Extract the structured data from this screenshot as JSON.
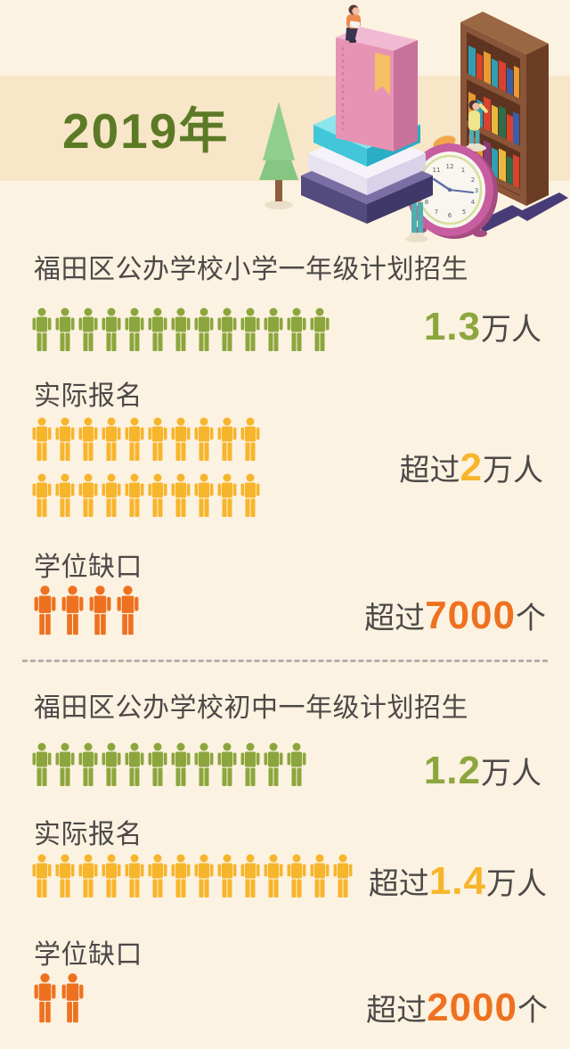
{
  "page": {
    "bg": "#FCF2E1"
  },
  "colors": {
    "green": "#8CA63D",
    "yellow": "#F7B52C",
    "orange": "#EE7120",
    "text": "#4C4948",
    "band": "#F8E6C8",
    "year": "#5C7A26",
    "divider": "#B4B0AC"
  },
  "header": {
    "year": "2019年",
    "illustration_icons": [
      "tree-icon",
      "book-stack-icon",
      "pink-book-icon",
      "bookmark-icon",
      "reading-person-icon",
      "bookshelf-icon",
      "shelf-books-icon",
      "browsing-person-icon",
      "alarm-clock-icon",
      "standing-person-icon"
    ]
  },
  "sections": [
    {
      "label": "福田区公办学校小学一年级计划招生",
      "icons": 13,
      "prefix": "",
      "number": "1.3",
      "suffix": "万人"
    },
    {
      "label": "实际报名",
      "icons": 20,
      "prefix": "超过",
      "number": "2",
      "suffix": "万人"
    },
    {
      "label": "学位缺口",
      "icons": 4,
      "prefix": "超过",
      "number": "7000",
      "suffix": "个"
    },
    {
      "label": "福田区公办学校初中一年级计划招生",
      "icons": 12,
      "prefix": "",
      "number": "1.2",
      "suffix": "万人"
    },
    {
      "label": "实际报名",
      "icons": 14,
      "prefix": "超过",
      "number": "1.4",
      "suffix": "万人"
    },
    {
      "label": "学位缺口",
      "icons": 2,
      "prefix": "超过",
      "number": "2000",
      "suffix": "个"
    }
  ],
  "chart_data": {
    "type": "bar",
    "subtype": "pictogram",
    "title": "2019年",
    "groups": [
      {
        "category": "小学",
        "rows": [
          {
            "metric": "福田区公办学校小学一年级计划招生",
            "value": 13000,
            "display": "1.3万人",
            "icon_count": 13,
            "icon_color": "#8CA63D"
          },
          {
            "metric": "实际报名",
            "qualifier": "超过",
            "value": 20000,
            "display": "超过2万人",
            "icon_count": 20,
            "icon_color": "#F7B52C"
          },
          {
            "metric": "学位缺口",
            "qualifier": "超过",
            "value": 7000,
            "display": "超过7000个",
            "icon_count": 4,
            "icon_color": "#EE7120"
          }
        ]
      },
      {
        "category": "初中",
        "rows": [
          {
            "metric": "福田区公办学校初中一年级计划招生",
            "value": 12000,
            "display": "1.2万人",
            "icon_count": 12,
            "icon_color": "#8CA63D"
          },
          {
            "metric": "实际报名",
            "qualifier": "超过",
            "value": 14000,
            "display": "超过1.4万人",
            "icon_count": 14,
            "icon_color": "#F7B52C"
          },
          {
            "metric": "学位缺口",
            "qualifier": "超过",
            "value": 2000,
            "display": "超过2000个",
            "icon_count": 2,
            "icon_color": "#EE7120"
          }
        ]
      }
    ]
  }
}
